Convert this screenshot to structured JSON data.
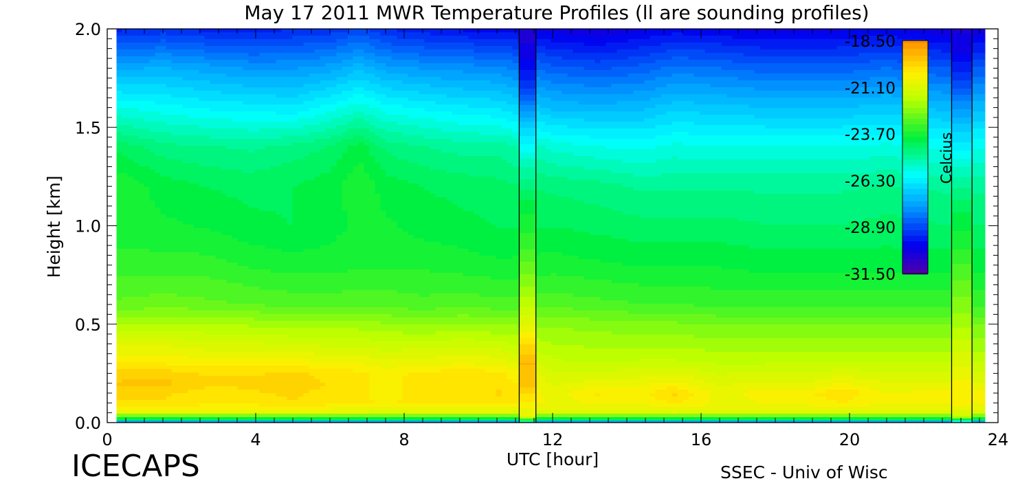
{
  "chart_data": {
    "type": "heatmap",
    "title": "May 17 2011 MWR Temperature Profiles (ll are sounding profiles)",
    "xlabel": "UTC [hour]",
    "ylabel": "Height [km]",
    "xlim": [
      0,
      24
    ],
    "ylim": [
      0.0,
      2.0
    ],
    "x_ticks": [
      "0",
      "4",
      "8",
      "12",
      "16",
      "20",
      "24"
    ],
    "x_tick_values": [
      0,
      4,
      8,
      12,
      16,
      20,
      24
    ],
    "y_ticks": [
      "0.0",
      "0.5",
      "1.0",
      "1.5",
      "2.0"
    ],
    "y_tick_values": [
      0.0,
      0.5,
      1.0,
      1.5,
      2.0
    ],
    "colorbar": {
      "label": "Celcius",
      "min": -31.5,
      "max": -18.5,
      "ticks": [
        "-18.50",
        "-21.10",
        "-23.70",
        "-26.30",
        "-28.90",
        "-31.50"
      ],
      "tick_values": [
        -18.5,
        -21.1,
        -23.7,
        -26.3,
        -28.9,
        -31.5
      ]
    },
    "data_time_range_hours": [
      0.25,
      23.65
    ],
    "heights_km": [
      0.0,
      0.02,
      0.05,
      0.1,
      0.15,
      0.2,
      0.25,
      0.3,
      0.4,
      0.5,
      0.6,
      0.8,
      1.0,
      1.2,
      1.4,
      1.6,
      1.8,
      2.0
    ],
    "times_hours": [
      0.3,
      1.5,
      2.7,
      3.9,
      5.0,
      6.0,
      6.8,
      7.5,
      8.5,
      9.6,
      10.6,
      12.0,
      13.2,
      14.4,
      15.3,
      16.5,
      17.8,
      19.0,
      19.8,
      21.0,
      22.5,
      23.6
    ],
    "series": [
      {
        "values": [
          -28,
          -24,
          -21,
          -20,
          -19.8,
          -19.6,
          -19.8,
          -20.3,
          -21,
          -22,
          -22.8,
          -23.4,
          -23.7,
          -23.6,
          -24.3,
          -25.8,
          -27.5,
          -29.5
        ]
      },
      {
        "values": [
          -28,
          -24,
          -21,
          -20,
          -19.9,
          -19.5,
          -19.8,
          -20.3,
          -21,
          -21.9,
          -22.7,
          -23.4,
          -23.8,
          -24,
          -24.7,
          -26,
          -27.4,
          -29.3
        ]
      },
      {
        "values": [
          -28,
          -24,
          -21,
          -20.1,
          -20.1,
          -19.9,
          -20,
          -20.4,
          -21.2,
          -21.9,
          -22.8,
          -23.4,
          -23.9,
          -24.2,
          -24.8,
          -26.2,
          -27.6,
          -29.5
        ]
      },
      {
        "values": [
          -28,
          -24,
          -21,
          -20.1,
          -20,
          -19.9,
          -20,
          -20.4,
          -21.2,
          -22,
          -22.9,
          -23.6,
          -24.1,
          -24.3,
          -24.9,
          -26.3,
          -27.8,
          -29.6
        ]
      },
      {
        "values": [
          -28,
          -24,
          -21,
          -20,
          -19.9,
          -19.7,
          -19.9,
          -20.4,
          -21.3,
          -22.1,
          -23,
          -23.7,
          -24.2,
          -24.2,
          -24.7,
          -26.4,
          -27.8,
          -29.4
        ]
      },
      {
        "values": [
          -28,
          -24,
          -21,
          -20.1,
          -20.1,
          -20,
          -20.1,
          -20.6,
          -21.4,
          -22.1,
          -23,
          -23.7,
          -24,
          -24,
          -24.5,
          -26,
          -27.6,
          -29.3
        ]
      },
      {
        "values": [
          -28,
          -24,
          -21,
          -20.2,
          -20.2,
          -20.2,
          -20.2,
          -20.6,
          -21.4,
          -22.1,
          -23,
          -23.6,
          -23.8,
          -23.6,
          -24,
          -25.6,
          -27.2,
          -29
        ]
      },
      {
        "values": [
          -28,
          -24,
          -21,
          -20.3,
          -20.5,
          -20.4,
          -20.4,
          -20.8,
          -21.5,
          -22.2,
          -23,
          -23.6,
          -23.8,
          -24,
          -24.6,
          -26,
          -27.6,
          -29.4
        ]
      },
      {
        "values": [
          -28,
          -24,
          -21,
          -20.2,
          -20.1,
          -20.1,
          -20.2,
          -20.7,
          -21.5,
          -22.3,
          -23.1,
          -23.6,
          -24,
          -24.2,
          -24.8,
          -26.2,
          -27.8,
          -29.6
        ]
      },
      {
        "values": [
          -28,
          -24,
          -21,
          -20.2,
          -20.2,
          -20.1,
          -20.1,
          -20.6,
          -21.4,
          -22.2,
          -23,
          -23.7,
          -24.1,
          -24.3,
          -25,
          -26.4,
          -27.9,
          -29.8
        ]
      },
      {
        "values": [
          -28,
          -24,
          -21,
          -20.1,
          -19.9,
          -20,
          -20.2,
          -20.7,
          -21.5,
          -22.3,
          -23.1,
          -23.8,
          -24.2,
          -24.4,
          -25,
          -26.5,
          -28,
          -29.8
        ]
      },
      {
        "values": [
          -28,
          -24,
          -21,
          -20.7,
          -20.8,
          -21,
          -21.2,
          -21.5,
          -21.9,
          -22.3,
          -23,
          -23.7,
          -24.2,
          -24.6,
          -25.6,
          -27.2,
          -28.6,
          -30.2
        ]
      },
      {
        "values": [
          -28,
          -24,
          -21,
          -20.6,
          -20.2,
          -20.8,
          -21.2,
          -21.6,
          -22,
          -22.4,
          -23.1,
          -23.8,
          -24.3,
          -24.7,
          -25.8,
          -27.3,
          -28.8,
          -30.4
        ]
      },
      {
        "values": [
          -28,
          -24,
          -21,
          -20.6,
          -20.4,
          -20.7,
          -21.1,
          -21.5,
          -22,
          -22.5,
          -23.2,
          -23.9,
          -24.4,
          -24.9,
          -25.9,
          -27.2,
          -28.6,
          -30.1
        ]
      },
      {
        "values": [
          -28,
          -24,
          -21,
          -20.2,
          -19.9,
          -20.5,
          -21,
          -21.5,
          -22,
          -22.5,
          -23.2,
          -23.9,
          -24.4,
          -24.9,
          -25.7,
          -26.9,
          -28.3,
          -29.9
        ]
      },
      {
        "values": [
          -28,
          -24,
          -21,
          -20.7,
          -20.8,
          -21,
          -21.3,
          -21.6,
          -22.1,
          -22.6,
          -23.3,
          -23.9,
          -24.4,
          -24.9,
          -25.8,
          -27,
          -28.4,
          -30
        ]
      },
      {
        "values": [
          -28,
          -24,
          -21,
          -20.6,
          -20.4,
          -20.9,
          -21.2,
          -21.6,
          -22.1,
          -22.6,
          -23.3,
          -24,
          -24.5,
          -24.9,
          -25.8,
          -27.1,
          -28.6,
          -30.2
        ]
      },
      {
        "values": [
          -28,
          -24,
          -21,
          -20.5,
          -20.3,
          -20.9,
          -21.2,
          -21.6,
          -22.1,
          -22.6,
          -23.3,
          -24,
          -24.5,
          -24.9,
          -25.8,
          -27.1,
          -28.6,
          -30.2
        ]
      },
      {
        "values": [
          -28,
          -24,
          -21,
          -20.3,
          -20,
          -20.6,
          -21.1,
          -21.6,
          -22.1,
          -22.6,
          -23.3,
          -24,
          -24.5,
          -24.9,
          -25.8,
          -27.1,
          -28.6,
          -30.1
        ]
      },
      {
        "values": [
          -28,
          -24,
          -21,
          -20.6,
          -20.6,
          -20.9,
          -21.2,
          -21.6,
          -22.1,
          -22.6,
          -23.3,
          -24,
          -24.4,
          -24.8,
          -25.7,
          -27,
          -28.4,
          -30
        ]
      },
      {
        "values": [
          -28,
          -24,
          -21,
          -20.6,
          -20.5,
          -20.9,
          -21.2,
          -21.6,
          -22.1,
          -22.6,
          -23.3,
          -24,
          -24.5,
          -24.9,
          -25.9,
          -27.2,
          -28.7,
          -30.3
        ]
      },
      {
        "values": [
          -28,
          -24,
          -21,
          -20.6,
          -20.5,
          -20.9,
          -21.2,
          -21.6,
          -22.1,
          -22.6,
          -23.3,
          -24,
          -24.5,
          -24.9,
          -25.9,
          -27.2,
          -28.7,
          -30.3
        ]
      }
    ],
    "soundings": [
      {
        "start_hour": 11.1,
        "end_hour": 11.55,
        "heights_km": [
          0.0,
          0.03,
          0.1,
          0.2,
          0.3,
          0.4,
          0.5,
          0.7,
          0.9,
          1.1,
          1.3,
          1.5,
          1.6,
          1.7,
          1.8,
          1.9,
          2.0
        ],
        "values": [
          -26,
          -21,
          -20.3,
          -19.5,
          -19.3,
          -20,
          -21,
          -22.3,
          -23.3,
          -24,
          -25.2,
          -26.8,
          -28,
          -29.1,
          -29.8,
          -30.3,
          -30.5
        ]
      },
      {
        "start_hour": 22.75,
        "end_hour": 23.3,
        "heights_km": [
          0.0,
          0.03,
          0.1,
          0.2,
          0.3,
          0.4,
          0.5,
          0.7,
          0.9,
          1.1,
          1.3,
          1.5,
          1.6,
          1.7,
          1.8,
          1.9,
          2.0
        ],
        "values": [
          -27,
          -21.5,
          -20.3,
          -20.5,
          -21,
          -21.5,
          -22,
          -22.8,
          -23.6,
          -24.3,
          -25.5,
          -27,
          -27.8,
          -28.8,
          -29.5,
          -30.2,
          -30.4
        ]
      }
    ],
    "sounding_lines_hours": [
      11.1,
      11.55,
      22.75,
      23.3
    ]
  },
  "footer": {
    "left": "ICECAPS",
    "right": "SSEC - Univ of Wisc"
  }
}
